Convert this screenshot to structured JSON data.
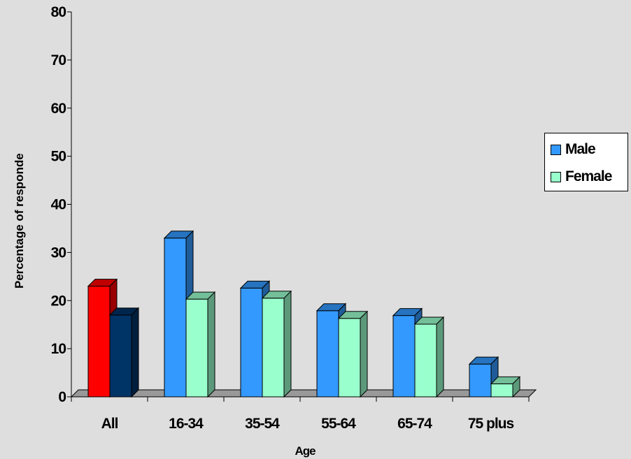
{
  "chart_data": {
    "type": "bar",
    "title": "",
    "xlabel": "Age",
    "ylabel": "Percentage of responde",
    "ylim": [
      0,
      80
    ],
    "yticks": [
      0,
      10,
      20,
      30,
      40,
      50,
      60,
      70,
      80
    ],
    "categories": [
      "All",
      "16-34",
      "35-54",
      "55-64",
      "65-74",
      "75 plus"
    ],
    "series": [
      {
        "name": "Male",
        "values": [
          23,
          33,
          22.6,
          17.9,
          16.9,
          6.8
        ]
      },
      {
        "name": "Female",
        "values": [
          17,
          20.3,
          20.5,
          16.3,
          15.1,
          2.7
        ]
      }
    ],
    "legend": "right",
    "grid": false,
    "three_d": true
  },
  "colors": {
    "male": "#3399ff",
    "female": "#99ffcc",
    "all_male": "#ff0000",
    "all_female": "#003366",
    "floor": "#999999",
    "background": "#dedede"
  }
}
